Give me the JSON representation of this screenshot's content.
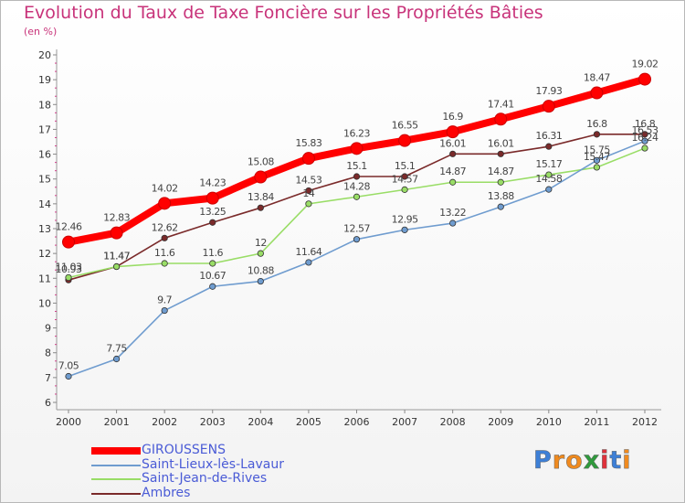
{
  "chart_data": {
    "type": "line",
    "title": "Evolution du Taux de Taxe Foncière sur les Propriétés Bâties",
    "ylabel": "(en %)",
    "xlabel": "",
    "x": [
      "2000",
      "2001",
      "2002",
      "2003",
      "2004",
      "2005",
      "2006",
      "2007",
      "2008",
      "2009",
      "2010",
      "2011",
      "2012"
    ],
    "ylim": [
      6,
      20
    ],
    "yticks": [
      "6",
      "7",
      "8",
      "9",
      "10",
      "11",
      "12",
      "13",
      "14",
      "15",
      "16",
      "17",
      "18",
      "19",
      "20"
    ],
    "grid": false,
    "legend_position": "bottom-left",
    "series": [
      {
        "name": "GIROUSSENS",
        "color": "#ff0000",
        "values": [
          12.46,
          12.83,
          14.02,
          14.23,
          15.08,
          15.83,
          16.23,
          16.55,
          16.9,
          17.41,
          17.93,
          18.47,
          19.02
        ],
        "labels": [
          "12.46",
          "12.83",
          "14.02",
          "14.23",
          "15.08",
          "15.83",
          "16.23",
          "16.55",
          "16.9",
          "17.41",
          "17.93",
          "18.47",
          "19.02"
        ]
      },
      {
        "name": "Saint-Lieux-lès-Lavaur",
        "color": "#6f9ccf",
        "values": [
          7.05,
          7.75,
          9.7,
          10.67,
          10.88,
          11.64,
          12.57,
          12.95,
          13.22,
          13.88,
          14.58,
          15.75,
          16.53
        ],
        "labels": [
          "7.05",
          "7.75",
          "9.7",
          "10.67",
          "10.88",
          "11.64",
          "12.57",
          "12.95",
          "13.22",
          "13.88",
          "14.58",
          "15.75",
          "16.53"
        ]
      },
      {
        "name": "Saint-Jean-de-Rives",
        "color": "#99dd66",
        "values": [
          11.03,
          11.47,
          11.6,
          11.6,
          12,
          14,
          14.28,
          14.57,
          14.87,
          14.87,
          15.17,
          15.47,
          16.24
        ],
        "labels": [
          "11.03",
          "11.47",
          "11.6",
          "11.6",
          "12",
          "14",
          "14.28",
          "14.57",
          "14.87",
          "14.87",
          "15.17",
          "15.47",
          "16.24"
        ]
      },
      {
        "name": "Ambres",
        "color": "#7a2a2a",
        "values": [
          10.93,
          11.47,
          12.62,
          13.25,
          13.84,
          14.53,
          15.1,
          15.1,
          16.01,
          16.01,
          16.31,
          16.8,
          16.8
        ],
        "labels": [
          "10.93",
          "11.47",
          "12.62",
          "13.25",
          "13.84",
          "14.53",
          "15.1",
          "15.1",
          "16.01",
          "16.01",
          "16.31",
          "16.8",
          "16.8"
        ]
      }
    ]
  },
  "brand": {
    "name": "Proxiti",
    "letters": [
      "P",
      "r",
      "o",
      "x",
      "i",
      "t",
      "i"
    ],
    "letter_colors": [
      "#3d7fd6",
      "#f08a1e",
      "#f08a1e",
      "#2f9a3c",
      "#e0303a",
      "#3d7fd6",
      "#f08a1e"
    ]
  }
}
